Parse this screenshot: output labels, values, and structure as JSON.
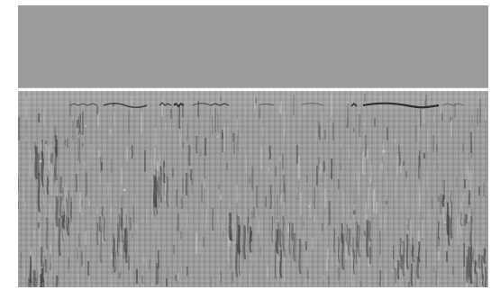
{
  "image": {
    "kind": "grayscale radar-like profile"
  },
  "colors": {
    "background": "#ffffff",
    "upper_band": "#9b9b9b",
    "interface_line": "#fbfbfb",
    "lower_band": "#9d9d9d",
    "dark_texture": "#3f3f3f",
    "light_texture": "#d2d2d2"
  }
}
